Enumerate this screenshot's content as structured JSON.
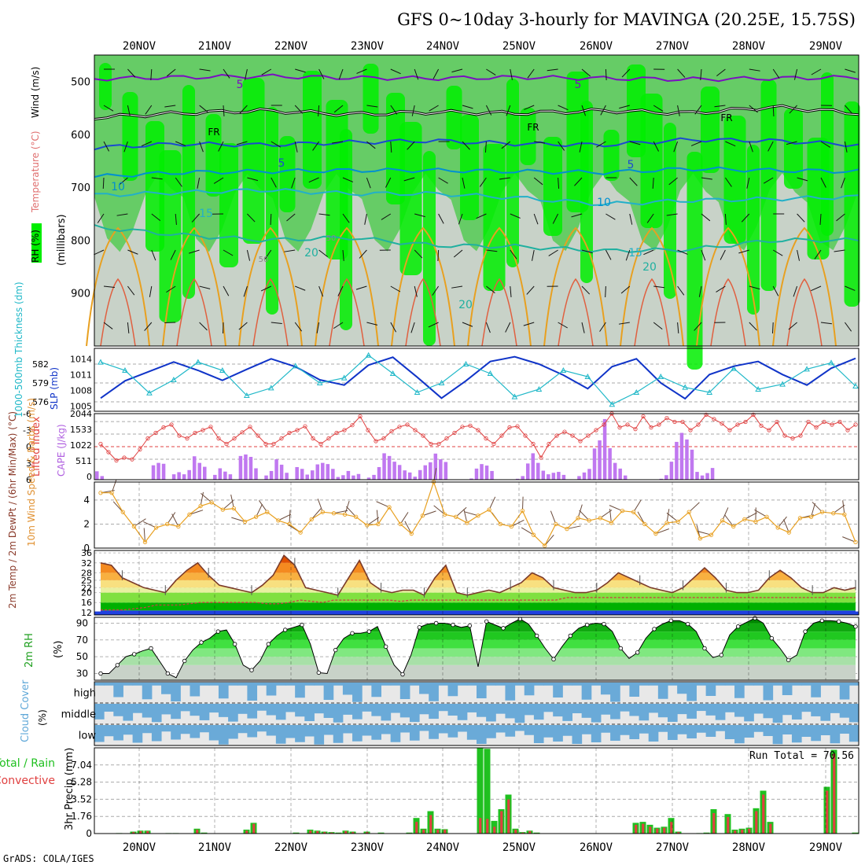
{
  "title": "GFS 0~10day 3-hourly for MAVINGA (20.25E, 15.75S)",
  "credit": "GrADS: COLA/IGES",
  "date_labels": [
    "20NOV",
    "21NOV",
    "22NOV",
    "23NOV",
    "24NOV",
    "25NOV",
    "26NOV",
    "27NOV",
    "28NOV",
    "29NOV"
  ],
  "chart_data": [
    {
      "type": "heatmap",
      "panel": "upper-air",
      "ylabel_words": [
        "RH (%)",
        "Temperature (°C)",
        "Wind (m/s)",
        "(millibars)"
      ],
      "y_ticks": [
        500,
        600,
        700,
        800,
        900
      ],
      "ylim": [
        1000,
        450
      ],
      "contour_labels": [
        "FR",
        "5",
        "10",
        "15",
        "20",
        "50"
      ],
      "series": [
        {
          "name": "5",
          "values": [
            495,
            492,
            490,
            493,
            494,
            492,
            494,
            496,
            494,
            492
          ]
        },
        {
          "name": "FR",
          "values": [
            568,
            560,
            555,
            562,
            558,
            560,
            555,
            560,
            548,
            560
          ]
        },
        {
          "name": "5",
          "values": [
            625,
            618,
            620,
            615,
            612,
            618,
            620,
            610,
            612,
            620
          ]
        },
        {
          "name": "10",
          "values": [
            680,
            672,
            670,
            668,
            668,
            670,
            672,
            665,
            668,
            670
          ]
        },
        {
          "name": "15",
          "values": [
            715,
            710,
            705,
            712,
            712,
            720,
            732,
            725,
            722,
            718
          ]
        },
        {
          "name": "20",
          "values": [
            775,
            790,
            800,
            795,
            810,
            812,
            820,
            818,
            800,
            800
          ]
        }
      ],
      "colors": {
        "rh_dark": "#00ee00",
        "rh_mid": "#66cc66",
        "rh_light": "#c8d2c8",
        "rh_pale": "#eef4ee",
        "temp_warm": "#e8a020",
        "temp_hot": "#d82060",
        "temp_cool": "#0090d0",
        "temp_cold": "#7a10c0",
        "freezing": "#000000"
      }
    },
    {
      "type": "line",
      "panel": "thickness-slp",
      "ylabel_left": "1000-500mb Thickness (dm)",
      "ylabel_right": "SLP (mb)",
      "left_ticks": [
        576,
        579,
        582
      ],
      "right_ticks": [
        1005,
        1008,
        1011,
        1014
      ],
      "series": [
        {
          "name": "SLP (mb)",
          "color": "#1034c8",
          "values": [
            1006.5,
            1009.8,
            1011.6,
            1013.4,
            1011.8,
            1009.9,
            1012.0,
            1014.0,
            1012.5,
            1010.0,
            1009.0,
            1012.8,
            1014.3,
            1010.5,
            1006.5,
            1009.8,
            1013.5,
            1014.4,
            1013.0,
            1010.9,
            1008.3,
            1012.5,
            1014.0,
            1009.4,
            1006.4,
            1011.0,
            1012.6,
            1013.5,
            1011.0,
            1009.0,
            1012.2,
            1014.1
          ]
        },
        {
          "name": "1000-500mb Thickness (dm)",
          "color": "#20b8c8",
          "values": [
            582.3,
            581.0,
            577.4,
            579.5,
            582.3,
            581.0,
            577.0,
            578.2,
            581.7,
            579.0,
            579.8,
            583.4,
            580.5,
            577.5,
            579.0,
            582.0,
            580.5,
            576.8,
            578.0,
            581.0,
            580.0,
            575.6,
            577.5,
            580.0,
            578.3,
            577.5,
            581.3,
            578.0,
            578.8,
            581.2,
            582.2,
            578.5
          ]
        }
      ]
    },
    {
      "type": "bar",
      "panel": "lifted-index-cape",
      "ylabel_left": "Lifted Index",
      "ylabel_right": "CAPE (J/kg)",
      "left_ticks": [
        "-6",
        "-3",
        "0",
        "3",
        "6"
      ],
      "right_ticks": [
        2044,
        1533,
        1022,
        511,
        0
      ],
      "series": [
        {
          "name": "CAPE (J/kg)",
          "color": "#c078f0",
          "values": [
            280,
            120,
            0,
            0,
            0,
            0,
            0,
            0,
            0,
            0,
            0,
            480,
            560,
            530,
            0,
            180,
            250,
            180,
            320,
            780,
            560,
            430,
            0,
            160,
            380,
            270,
            180,
            0,
            790,
            840,
            760,
            380,
            0,
            140,
            290,
            680,
            500,
            230,
            0,
            420,
            360,
            170,
            310,
            510,
            560,
            520,
            360,
            90,
            150,
            290,
            140,
            190,
            0,
            70,
            160,
            420,
            880,
            790,
            600,
            490,
            310,
            240,
            100,
            320,
            480,
            580,
            870,
            680,
            590,
            0,
            0,
            0,
            0,
            40,
            370,
            520,
            470,
            290,
            0,
            0,
            0,
            0,
            30,
            120,
            540,
            880,
            560,
            300,
            180,
            230,
            260,
            160,
            0,
            0,
            120,
            240,
            360,
            1040,
            1310,
            2020,
            1050,
            560,
            370,
            140,
            0,
            0,
            0,
            0,
            0,
            0,
            30,
            150,
            600,
            1260,
            1560,
            1340,
            1000,
            260,
            140,
            220,
            390,
            0,
            0,
            0,
            0,
            0,
            0,
            0,
            0,
            0,
            0,
            0,
            0,
            0,
            0,
            0,
            0,
            0,
            0,
            0,
            0,
            0,
            0,
            0,
            0,
            0,
            0,
            0,
            0
          ]
        },
        {
          "name": "Lifted Index",
          "color": "#e04040",
          "values": [
            -0.5,
            1.0,
            2.5,
            2.0,
            2.3,
            0.5,
            -1.5,
            -2.5,
            -3.5,
            -4.0,
            -2.0,
            -1.5,
            -2.5,
            -3.0,
            -3.6,
            -1.5,
            -0.5,
            -1.5,
            -2.6,
            -3.6,
            -2.0,
            -0.5,
            -0.5,
            -1.5,
            -2.5,
            -3.0,
            -3.7,
            -1.5,
            -0.5,
            -1.5,
            -2.5,
            -3.0,
            -3.9,
            -5.5,
            -3.0,
            -1.0,
            -1.5,
            -2.8,
            -3.6,
            -4.0,
            -3.0,
            -2.0,
            -0.5,
            -0.5,
            -1.5,
            -2.5,
            -3.6,
            -3.8,
            -3.0,
            -1.5,
            -0.5,
            -2.0,
            -3.5,
            -3.7,
            -2.0,
            -0.5,
            2.0,
            -0.5,
            -2.0,
            -2.7,
            -2.0,
            -1.0,
            -2.0,
            -3.0,
            -4.0,
            -6.0,
            -3.5,
            -4.0,
            -3.2,
            -5.5,
            -3.5,
            -4.0,
            -5.2,
            -4.5,
            -4.5,
            -3.0,
            -4.0,
            -5.8,
            -5.0,
            -4.2,
            -3.0,
            -4.0,
            -4.5,
            -5.8,
            -3.8,
            -3.0,
            -4.5,
            -2.0,
            -1.5,
            -2.0,
            -4.5,
            -3.5,
            -4.5,
            -4.0,
            -4.5,
            -3.0,
            -4.0
          ]
        }
      ]
    },
    {
      "type": "line",
      "panel": "10m-wind",
      "ylabel": "10m Wind Speed & Barbs (m/s)",
      "y_ticks": [
        0,
        2,
        4
      ],
      "ylim": [
        0,
        5.5
      ],
      "series": [
        {
          "name": "10m Wind Speed",
          "color": "#e8a020",
          "values": [
            4.6,
            4.6,
            3.0,
            1.8,
            0.5,
            1.7,
            2.0,
            1.8,
            2.8,
            3.5,
            3.8,
            3.2,
            3.3,
            2.2,
            2.6,
            3.0,
            2.3,
            2.0,
            1.3,
            2.4,
            3.0,
            2.9,
            2.8,
            2.6,
            1.9,
            2.0,
            3.4,
            2.0,
            1.2,
            2.7,
            5.5,
            2.8,
            2.6,
            2.1,
            2.7,
            3.2,
            2.0,
            1.8,
            3.1,
            1.1,
            0.2,
            2.0,
            1.6,
            2.5,
            2.3,
            2.5,
            2.1,
            3.1,
            3.0,
            2.0,
            1.2,
            2.1,
            2.2,
            3.0,
            0.8,
            1.1,
            2.3,
            1.8,
            2.4,
            2.2,
            2.6,
            1.7,
            1.3,
            2.5,
            2.6,
            3.0,
            2.9,
            2.8,
            0.5
          ]
        }
      ]
    },
    {
      "type": "area",
      "panel": "2m-temp",
      "ylabel": "2m Temp / 2m DewPt / (6hr Min/Max) (°C)",
      "y_ticks": [
        12,
        16,
        20,
        22,
        25,
        28,
        32,
        36
      ],
      "ylim": [
        11,
        37
      ],
      "series": [
        {
          "name": "2m Temp",
          "color": "#7a3a2a",
          "values": [
            32,
            31,
            26,
            24,
            22,
            21,
            20,
            25,
            29,
            32,
            27,
            23,
            22,
            21,
            20,
            23,
            27,
            35,
            31,
            22,
            21,
            20,
            19,
            26,
            33,
            24,
            21,
            20,
            21,
            21,
            19,
            26,
            31,
            20,
            19,
            20,
            21,
            20,
            22,
            24,
            28,
            26,
            22,
            21,
            20,
            20,
            21,
            24,
            28,
            26,
            24,
            22,
            21,
            20,
            22,
            26,
            30,
            26,
            21,
            20,
            20,
            21,
            26,
            29,
            26,
            22,
            20,
            20,
            22,
            21,
            22
          ]
        },
        {
          "name": "2m DewPt",
          "color": "#c84040",
          "values": [
            13,
            13,
            13,
            13.5,
            14,
            15,
            15,
            15,
            15.5,
            16,
            16,
            16,
            16,
            16,
            16,
            15.5,
            15.5,
            16,
            17,
            16.5,
            16,
            17,
            17,
            17,
            17,
            17,
            17,
            16.5,
            17,
            17,
            17,
            17,
            17,
            17,
            17,
            17,
            17,
            17,
            17,
            17,
            17,
            17,
            18,
            18,
            18,
            18,
            18,
            18,
            18,
            18,
            18,
            18,
            18,
            18,
            18,
            18,
            18,
            18,
            18,
            18,
            18,
            18,
            18,
            18,
            18,
            18,
            18,
            18,
            18
          ]
        }
      ],
      "colors": {
        "hot": "#e05000",
        "warm": "#f8b040",
        "mild": "#f8e080",
        "cool": "#e8f0a0",
        "green_dark": "#00b000",
        "green_light": "#80e040",
        "blue_base": "#2040e0"
      }
    },
    {
      "type": "area",
      "panel": "2m-rh",
      "ylabel": "2m RH (%)",
      "y_ticks": [
        30,
        50,
        70,
        90
      ],
      "ylim": [
        22,
        97
      ],
      "series": [
        {
          "name": "2m RH",
          "values": [
            30,
            30,
            40,
            50,
            53,
            57,
            60,
            45,
            30,
            25,
            45,
            58,
            67,
            72,
            80,
            82,
            65,
            40,
            34,
            45,
            65,
            75,
            82,
            85,
            88,
            65,
            31,
            30,
            58,
            72,
            78,
            78,
            80,
            86,
            62,
            40,
            29,
            52,
            85,
            89,
            90,
            90,
            88,
            85,
            87,
            38,
            92,
            88,
            84,
            90,
            95,
            89,
            75,
            60,
            47,
            62,
            75,
            84,
            88,
            90,
            89,
            80,
            60,
            48,
            55,
            72,
            83,
            89,
            93,
            93,
            89,
            80,
            60,
            49,
            52,
            76,
            86,
            91,
            96,
            90,
            72,
            60,
            46,
            52,
            80,
            90,
            93,
            93,
            92,
            90,
            86
          ]
        }
      ]
    },
    {
      "type": "bar",
      "panel": "cloud-cover",
      "ylabel": "Cloud Cover (%)",
      "row_labels": [
        "high",
        "middle",
        "low"
      ],
      "colors": {
        "cloud": "#6aaad8",
        "clear": "#e8e8e8"
      }
    },
    {
      "type": "bar",
      "panel": "precip",
      "ylabel": "3hr Precip (mm)",
      "left_labels": [
        "Total / Rain",
        "Convective"
      ],
      "y_ticks": [
        0,
        1.76,
        3.52,
        5.28,
        7.04
      ],
      "ylim": [
        0,
        8.8
      ],
      "annotation": "Run Total = 70.56",
      "series": [
        {
          "name": "Total / Rain",
          "color": "#20c020",
          "values": [
            0,
            0,
            0,
            0.05,
            0,
            0.2,
            0.3,
            0.3,
            0,
            0,
            0.05,
            0.05,
            0,
            0,
            0.5,
            0.1,
            0,
            0,
            0,
            0,
            0,
            0.4,
            1.1,
            0,
            0,
            0,
            0,
            0,
            0.1,
            0,
            0.4,
            0.3,
            0.2,
            0.15,
            0.1,
            0.3,
            0.2,
            0,
            0.2,
            0,
            0.1,
            0,
            0,
            0,
            0.1,
            1.6,
            0.5,
            2.3,
            0.5,
            0.45,
            0,
            0,
            0,
            0,
            8.8,
            8.7,
            1.3,
            2.5,
            4.0,
            0.5,
            0.15,
            0.3,
            0.1,
            0,
            0,
            0,
            0,
            0,
            0,
            0,
            0,
            0,
            0,
            0,
            0,
            0,
            1.1,
            1.2,
            0.9,
            0.6,
            0.7,
            1.6,
            0.2,
            0,
            0,
            0.05,
            0.1,
            2.5,
            0,
            2.0,
            0.4,
            0.5,
            0.6,
            2.6,
            4.4,
            1.2,
            0,
            0,
            0,
            0,
            0,
            0,
            0,
            4.8,
            8.6,
            0,
            0,
            0.1
          ]
        },
        {
          "name": "Convective",
          "color": "#e04040",
          "values": [
            0,
            0,
            0,
            0.03,
            0,
            0.15,
            0.25,
            0.25,
            0,
            0,
            0.03,
            0.03,
            0,
            0,
            0.4,
            0.05,
            0,
            0,
            0,
            0,
            0,
            0.3,
            1.0,
            0,
            0,
            0,
            0,
            0,
            0.05,
            0,
            0.3,
            0.25,
            0.15,
            0.1,
            0.05,
            0.25,
            0.15,
            0,
            0.15,
            0,
            0.05,
            0,
            0,
            0,
            0.05,
            1.2,
            0.4,
            1.9,
            0.4,
            0.4,
            0,
            0,
            0,
            0,
            1.6,
            1.5,
            0.7,
            2.3,
            3.5,
            0.4,
            0.1,
            0.25,
            0.05,
            0,
            0,
            0,
            0,
            0,
            0,
            0,
            0,
            0,
            0,
            0,
            0,
            0,
            0.9,
            1.0,
            0.7,
            0.5,
            0.6,
            1.2,
            0.15,
            0,
            0,
            0.03,
            0.05,
            2.1,
            0,
            1.7,
            0.3,
            0.4,
            0.5,
            2.3,
            4.0,
            1.0,
            0,
            0,
            0,
            0,
            0,
            0,
            0,
            4.4,
            8.2,
            0,
            0,
            0.05
          ]
        }
      ]
    }
  ]
}
